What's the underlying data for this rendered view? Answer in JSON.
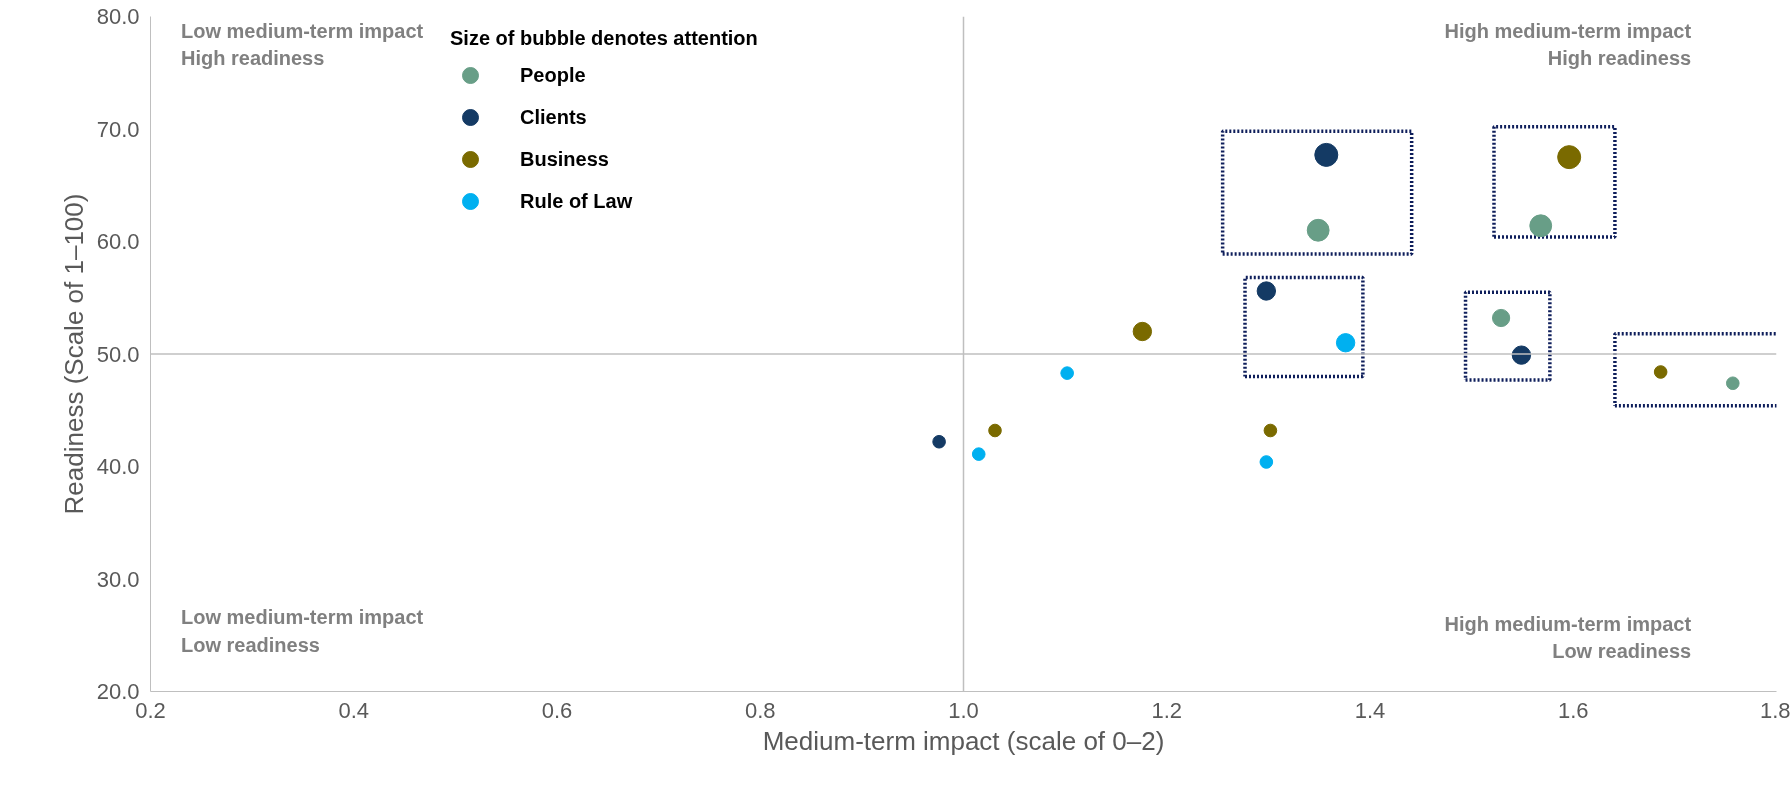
{
  "chart_data": {
    "type": "bubble",
    "xlabel": "Medium-term impact (scale of 0–2)",
    "ylabel": "Readiness (Scale of 1–100)",
    "legend_title": "Size of bubble denotes attention",
    "legend": "top left",
    "grid": false,
    "xlim": [
      0.2,
      1.8
    ],
    "ylim": [
      20,
      80
    ],
    "xticks": [
      0.2,
      0.4,
      0.6,
      0.8,
      {
        "value": 1.0,
        "label": "1.0"
      },
      1.2,
      1.4,
      1.6,
      1.8
    ],
    "yticks": [
      {
        "value": 20,
        "label": "20.0"
      },
      {
        "value": 30,
        "label": "30.0"
      },
      {
        "value": 40,
        "label": "40.0"
      },
      {
        "value": 50,
        "label": "50.0"
      },
      {
        "value": 60,
        "label": "60.0"
      },
      {
        "value": 70,
        "label": "70.0"
      },
      {
        "value": 80,
        "label": "80.0"
      }
    ],
    "ref_lines": [
      {
        "axis": "x",
        "value": 1.0,
        "color": "#bfbfbf"
      },
      {
        "axis": "y",
        "value": 50,
        "color": "#bfbfbf"
      }
    ],
    "annotations": [
      "Low medium-term impact\nHigh readiness",
      "High medium-term impact\nHigh readiness",
      "Low medium-term impact\nLow readiness",
      "High medium-term impact\nLow readiness"
    ],
    "series": [
      {
        "name": "People",
        "color": "#689e87",
        "x": [
          1.349,
          1.568,
          1.529,
          1.757
        ],
        "values": [
          61.0,
          61.4,
          53.2,
          47.4
        ],
        "sizes": [
          0.9,
          0.9,
          0.56,
          0.3
        ]
      },
      {
        "name": "Clients",
        "color": "#143a64",
        "x": [
          1.357,
          1.298,
          1.549,
          0.976
        ],
        "values": [
          67.7,
          55.6,
          49.9,
          42.2
        ],
        "sizes": [
          1,
          0.64,
          0.64,
          0.3
        ]
      },
      {
        "name": "Business",
        "color": "#7a6a00",
        "x": [
          1.596,
          1.686,
          1.176,
          1.031,
          1.302
        ],
        "values": [
          67.5,
          48.4,
          52.0,
          43.2,
          43.2
        ],
        "sizes": [
          1,
          0.3,
          0.64,
          0.3,
          0.3
        ]
      },
      {
        "name": "Rule of Law",
        "color": "#00b0f0",
        "x": [
          1.376,
          1.102,
          1.015,
          1.298
        ],
        "values": [
          51.0,
          48.3,
          41.1,
          40.4
        ],
        "sizes": [
          0.64,
          0.3,
          0.3,
          0.3
        ]
      }
    ]
  }
}
